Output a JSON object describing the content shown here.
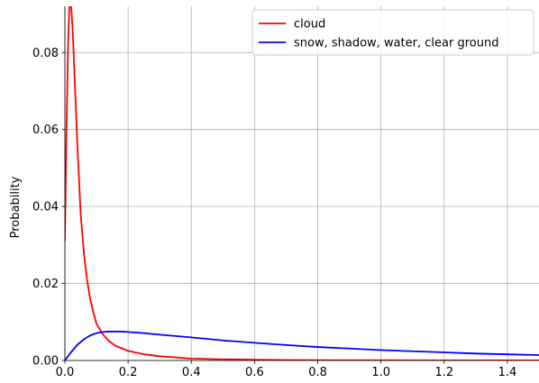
{
  "chart_data": {
    "type": "line",
    "title": "",
    "xlabel": "",
    "ylabel": "Probability",
    "xlim": [
      0,
      1.5
    ],
    "ylim": [
      0,
      0.092
    ],
    "xticks": [
      "0.0",
      "0.2",
      "0.4",
      "0.6",
      "0.8",
      "1.0",
      "1.2",
      "1.4"
    ],
    "yticks": [
      "0.00",
      "0.02",
      "0.04",
      "0.06",
      "0.08"
    ],
    "grid": true,
    "legend_position": "top-right",
    "series": [
      {
        "name": "cloud",
        "color": "#ff0000",
        "x": [
          0,
          0.005,
          0.01,
          0.015,
          0.02,
          0.025,
          0.03,
          0.04,
          0.05,
          0.06,
          0.07,
          0.08,
          0.09,
          0.1,
          0.12,
          0.14,
          0.16,
          0.2,
          0.25,
          0.3,
          0.4,
          0.5,
          0.6,
          0.7,
          0.8,
          1.0,
          1.2,
          1.5
        ],
        "values": [
          0.031,
          0.06,
          0.082,
          0.094,
          0.092,
          0.085,
          0.075,
          0.055,
          0.038,
          0.028,
          0.021,
          0.016,
          0.0125,
          0.0095,
          0.0068,
          0.005,
          0.0038,
          0.0025,
          0.0016,
          0.0011,
          0.0005,
          0.0003,
          0.0002,
          0.00012,
          8e-05,
          4e-05,
          2e-05,
          1e-05
        ]
      },
      {
        "name": "snow, shadow, water, clear ground",
        "color": "#0000ff",
        "x": [
          0,
          0.02,
          0.04,
          0.06,
          0.08,
          0.1,
          0.12,
          0.14,
          0.16,
          0.18,
          0.2,
          0.25,
          0.3,
          0.4,
          0.5,
          0.6,
          0.7,
          0.8,
          0.9,
          1.0,
          1.1,
          1.2,
          1.3,
          1.4,
          1.5
        ],
        "values": [
          0.0,
          0.0022,
          0.0041,
          0.0055,
          0.0065,
          0.0071,
          0.0074,
          0.0075,
          0.0075,
          0.0075,
          0.0074,
          0.0071,
          0.0067,
          0.006,
          0.0052,
          0.0046,
          0.004,
          0.0035,
          0.0031,
          0.0027,
          0.0024,
          0.0021,
          0.0018,
          0.0016,
          0.0014
        ]
      }
    ]
  }
}
